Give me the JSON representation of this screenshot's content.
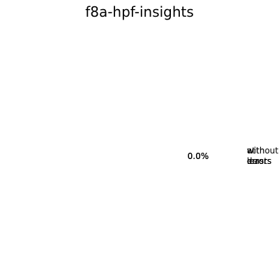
{
  "chart_data": {
    "type": "pie",
    "title": "f8a-hpf-insights",
    "slices": [
      {
        "label": "with errors",
        "value": 0.0,
        "value_label": "0.0%"
      },
      {
        "label": "without errors",
        "value": 0.0,
        "value_label": "0.0%"
      },
      {
        "label": "errors",
        "value": 0.0,
        "value_label": "0.0%"
      },
      {
        "label": "at least",
        "value": 0.0,
        "value_label": "0.0%"
      },
      {
        "label": "de",
        "value": 0.0,
        "value_label": "0.0%"
      }
    ]
  }
}
